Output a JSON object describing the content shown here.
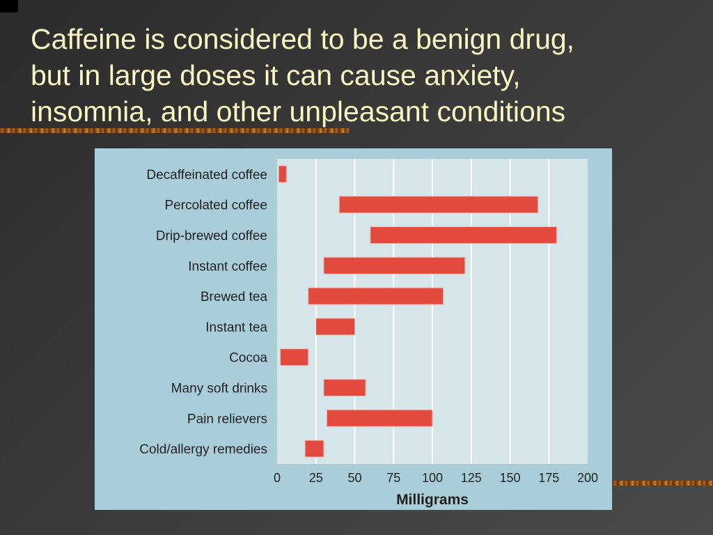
{
  "slide": {
    "title_lines": [
      "Caffeine is considered to be a benign drug,",
      "but in large doses it can cause anxiety,",
      "insomnia, and other unpleasant conditions"
    ]
  },
  "colors": {
    "background": "#333333",
    "title_text": "#fdf7c4",
    "chart_panel": "#a9ced9",
    "plot_area": "#d5e5ea",
    "bar": "#e24a3d",
    "bar_border": "#f4b9b0",
    "gridline": "#ffffff"
  },
  "chart_data": {
    "type": "bar",
    "orientation": "horizontal",
    "subtype": "floating-range",
    "categories": [
      "Decaffeinated coffee",
      "Percolated coffee",
      "Drip-brewed coffee",
      "Instant coffee",
      "Brewed tea",
      "Instant tea",
      "Cocoa",
      "Many soft drinks",
      "Pain relievers",
      "Cold/allergy remedies"
    ],
    "ranges": [
      [
        1,
        6
      ],
      [
        40,
        168
      ],
      [
        60,
        180
      ],
      [
        30,
        121
      ],
      [
        20,
        107
      ],
      [
        25,
        50
      ],
      [
        2,
        20
      ],
      [
        30,
        57
      ],
      [
        32,
        100
      ],
      [
        18,
        30
      ]
    ],
    "xlabel": "Milligrams",
    "xlim": [
      0,
      200
    ],
    "xticks": [
      0,
      25,
      50,
      75,
      100,
      125,
      150,
      175,
      200
    ],
    "grid": "vertical"
  }
}
